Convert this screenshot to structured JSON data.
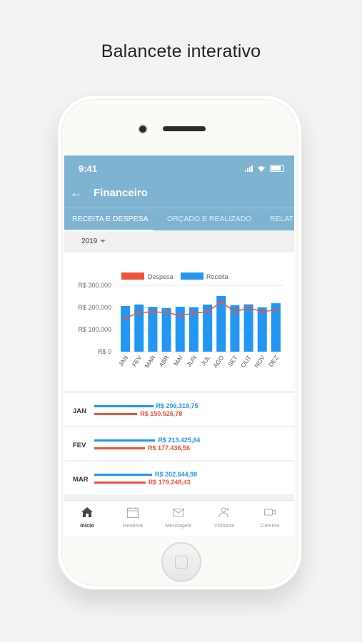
{
  "headline": "Balancete interativo",
  "status": {
    "time": "9:41"
  },
  "header": {
    "title": "Financeiro"
  },
  "tabs": [
    {
      "label": "RECEITA E DESPESA"
    },
    {
      "label": "ORÇADO E REALIZADO"
    },
    {
      "label": "RELATÓRIOS"
    }
  ],
  "year_filter": "2019",
  "colors": {
    "despesa": "#f0533a",
    "receita": "#2196f3",
    "appbar": "#7fb3d2"
  },
  "chart_data": {
    "type": "bar",
    "categories": [
      "JAN",
      "FEV",
      "MAR",
      "ABR",
      "MAI",
      "JUN",
      "JUL",
      "AGO",
      "SET",
      "OUT",
      "NOV",
      "DEZ"
    ],
    "series": [
      {
        "name": "Receita",
        "type": "bar",
        "values": [
          206319.75,
          213425.84,
          202644.98,
          197000,
          203000,
          201000,
          213000,
          252000,
          210000,
          214000,
          200000,
          219000
        ]
      },
      {
        "name": "Despesa",
        "type": "line",
        "values": [
          150526.78,
          177436.56,
          179248.43,
          178000,
          163000,
          174000,
          181000,
          224000,
          181000,
          198000,
          181000,
          189000
        ]
      }
    ],
    "yticks": [
      "R$ 0",
      "R$ 100.000",
      "R$ 200.000",
      "R$ 300.000"
    ],
    "ylim": [
      0,
      300000
    ],
    "legend": "top"
  },
  "months_list": [
    {
      "month": "JAN",
      "receita": 206319.75,
      "receita_label": "R$ 206.319,75",
      "despesa": 150526.78,
      "despesa_label": "R$ 150.526,78"
    },
    {
      "month": "FEV",
      "receita": 213425.84,
      "receita_label": "R$ 213.425,84",
      "despesa": 177436.56,
      "despesa_label": "R$ 177.436,56"
    },
    {
      "month": "MAR",
      "receita": 202644.98,
      "receita_label": "R$ 202.644,98",
      "despesa": 179248.43,
      "despesa_label": "R$ 179.248,43"
    }
  ],
  "bottom_nav": [
    {
      "label": "Início",
      "icon": "home-icon"
    },
    {
      "label": "Reserva",
      "icon": "calendar-icon"
    },
    {
      "label": "Mensagem",
      "icon": "mail-icon"
    },
    {
      "label": "Visitante",
      "icon": "visitor-icon"
    },
    {
      "label": "Camera",
      "icon": "camera-icon"
    }
  ]
}
